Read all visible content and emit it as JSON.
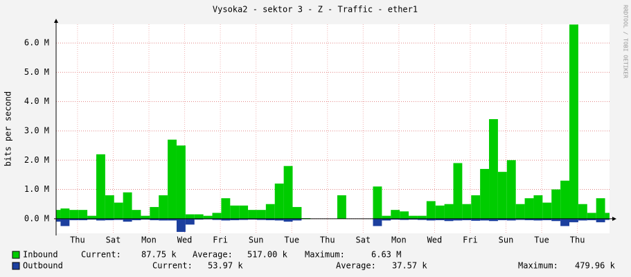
{
  "chart_data": {
    "type": "area",
    "title": "Vysoka2 - sektor 3 - Z - Traffic - ether1",
    "ylabel": "bits per second",
    "watermark": "RRDTOOL / TOBI OETIKER",
    "x": [
      0,
      0.5,
      1,
      1.5,
      2,
      2.5,
      3,
      3.5,
      4,
      4.5,
      5,
      5.5,
      6,
      6.5,
      7,
      7.5,
      8,
      8.5,
      9,
      9.5,
      10,
      10.5,
      11,
      11.5,
      12,
      12.5,
      13,
      13.5,
      14,
      14.5,
      15,
      15.5,
      16,
      16.5,
      17,
      17.5,
      18,
      18.5,
      19,
      19.5,
      20,
      20.5,
      21,
      21.5,
      22,
      22.5,
      23,
      23.5,
      24,
      24.5,
      25,
      25.5,
      26,
      26.5,
      27,
      27.5,
      28,
      28.5,
      29,
      29.5,
      30,
      30.5,
      31
    ],
    "series": [
      {
        "name": "Inbound",
        "color": "#00cc00",
        "stats": [
          {
            "label": "Current:",
            "value": "87.75 k"
          },
          {
            "label": "Average:",
            "value": "517.00 k"
          },
          {
            "label": "Maximum:",
            "value": "6.63 M"
          }
        ],
        "values": [
          300000,
          350000,
          300000,
          300000,
          100000,
          2200000,
          800000,
          550000,
          900000,
          300000,
          100000,
          400000,
          800000,
          2700000,
          2500000,
          150000,
          150000,
          100000,
          200000,
          700000,
          450000,
          450000,
          300000,
          300000,
          500000,
          1200000,
          1800000,
          400000,
          20000,
          0,
          0,
          0,
          800000,
          0,
          0,
          0,
          1100000,
          100000,
          300000,
          250000,
          100000,
          100000,
          600000,
          450000,
          500000,
          1900000,
          500000,
          800000,
          1700000,
          3400000,
          1600000,
          2000000,
          500000,
          700000,
          800000,
          550000,
          1000000,
          1300000,
          6630000,
          500000,
          200000,
          700000,
          200000
        ]
      },
      {
        "name": "Outbound",
        "color": "#1c3f9e",
        "stats": [
          {
            "label": "Current:",
            "value": "53.97 k"
          },
          {
            "label": "Average:",
            "value": "37.57 k"
          },
          {
            "label": "Maximum:",
            "value": "479.96 k"
          }
        ],
        "values": [
          -100000,
          -250000,
          -50000,
          -50000,
          -30000,
          -60000,
          -50000,
          -40000,
          -100000,
          -50000,
          -30000,
          -50000,
          -60000,
          -60000,
          -450000,
          -200000,
          -30000,
          -20000,
          -40000,
          -60000,
          -50000,
          -40000,
          -30000,
          -40000,
          -50000,
          -60000,
          -100000,
          -60000,
          -10000,
          0,
          0,
          0,
          0,
          0,
          0,
          0,
          -250000,
          -60000,
          -30000,
          -40000,
          -30000,
          -40000,
          -60000,
          -50000,
          -80000,
          -60000,
          -50000,
          -70000,
          -60000,
          -80000,
          -50000,
          -60000,
          -40000,
          -50000,
          -60000,
          -50000,
          -80000,
          -250000,
          -120000,
          -60000,
          -50000,
          -120000,
          -40000
        ]
      }
    ],
    "xlim": [
      0,
      31
    ],
    "xticks": [
      {
        "value": 1.2,
        "label": "Thu"
      },
      {
        "value": 3.2,
        "label": "Sat"
      },
      {
        "value": 5.2,
        "label": "Mon"
      },
      {
        "value": 7.2,
        "label": "Wed"
      },
      {
        "value": 9.2,
        "label": "Fri"
      },
      {
        "value": 11.2,
        "label": "Sun"
      },
      {
        "value": 13.2,
        "label": "Tue"
      },
      {
        "value": 15.2,
        "label": "Thu"
      },
      {
        "value": 17.2,
        "label": "Sat"
      },
      {
        "value": 19.2,
        "label": "Mon"
      },
      {
        "value": 21.2,
        "label": "Wed"
      },
      {
        "value": 23.2,
        "label": "Fri"
      },
      {
        "value": 25.2,
        "label": "Sun"
      },
      {
        "value": 27.2,
        "label": "Tue"
      },
      {
        "value": 29.2,
        "label": "Thu"
      }
    ],
    "ylim": [
      -500000,
      6640000
    ],
    "yticks": [
      {
        "value": 0,
        "label": "0.0 M"
      },
      {
        "value": 1000000,
        "label": "1.0 M"
      },
      {
        "value": 2000000,
        "label": "2.0 M"
      },
      {
        "value": 3000000,
        "label": "3.0 M"
      },
      {
        "value": 4000000,
        "label": "4.0 M"
      },
      {
        "value": 5000000,
        "label": "5.0 M"
      },
      {
        "value": 6000000,
        "label": "6.0 M"
      }
    ],
    "grid": true
  }
}
